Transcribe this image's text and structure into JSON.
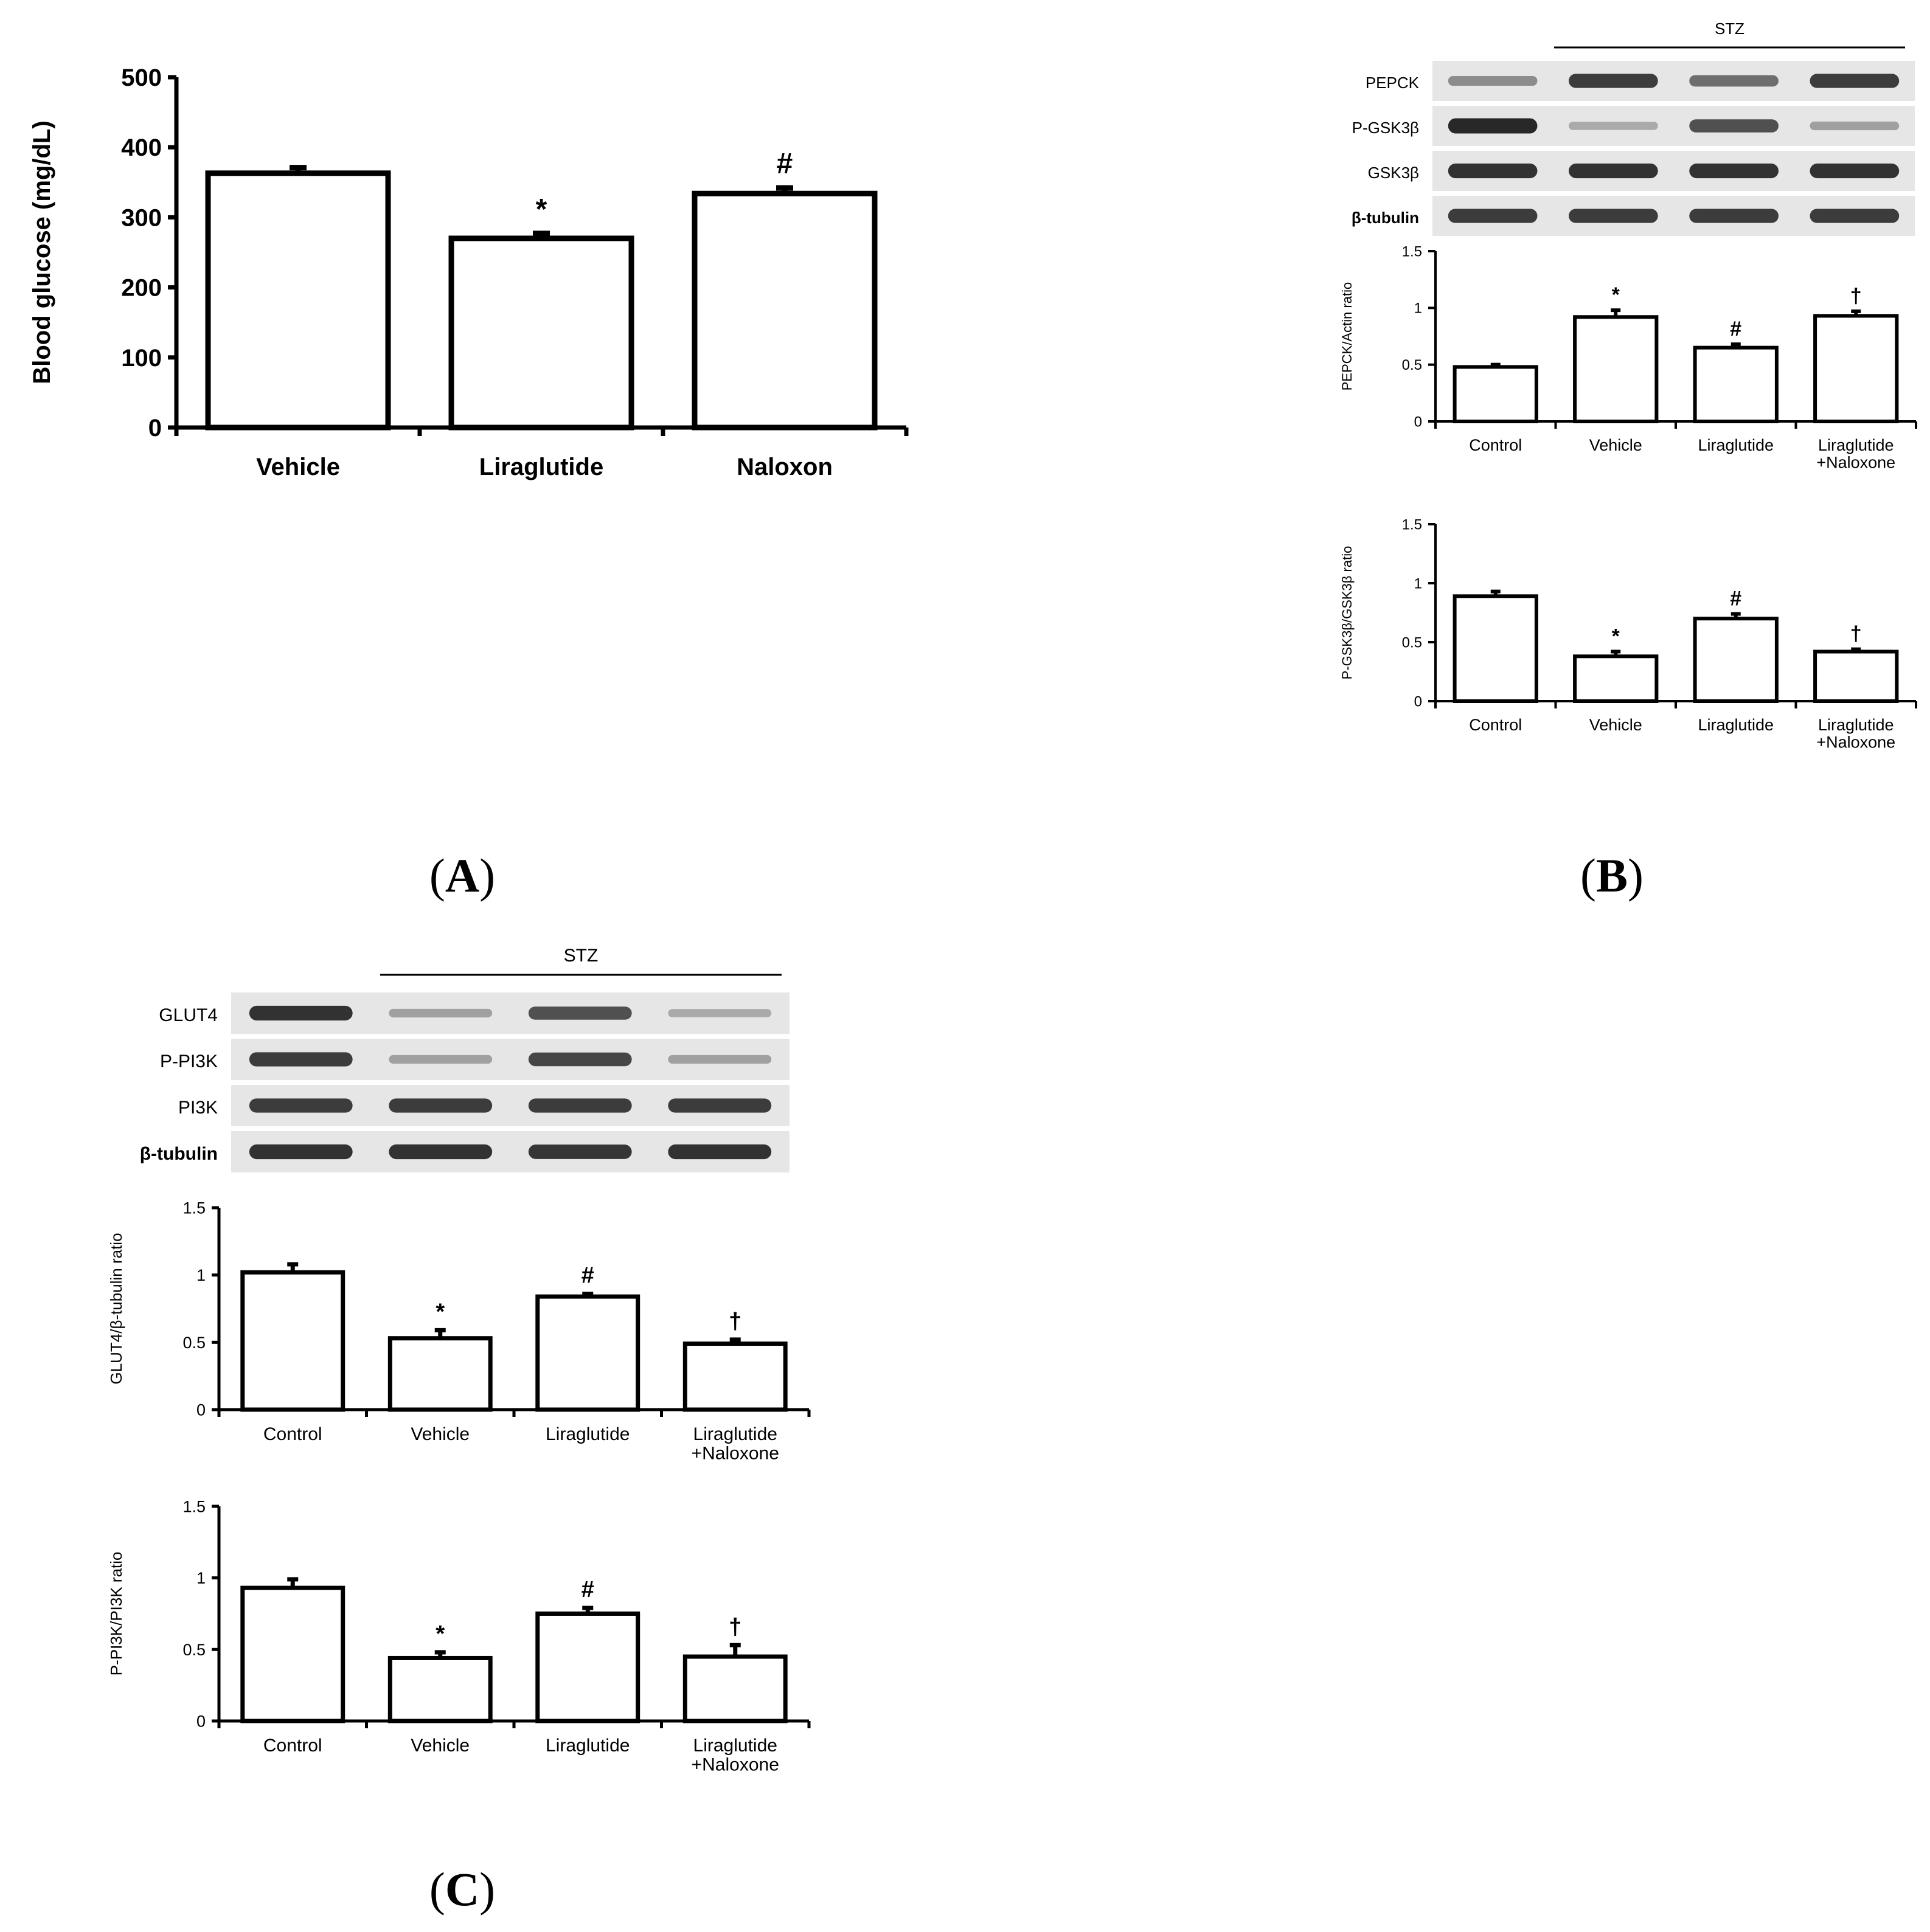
{
  "panels": {
    "A": {
      "label": "A"
    },
    "B": {
      "label": "B"
    },
    "C": {
      "label": "C"
    }
  },
  "chart_data": [
    {
      "id": "A",
      "type": "bar",
      "categories": [
        "Vehicle",
        "Liraglutide",
        "Naloxon"
      ],
      "values": [
        363,
        270,
        334
      ],
      "errors": [
        8,
        7,
        8
      ],
      "annotations": [
        "",
        "*",
        "#"
      ],
      "ylabel": "Blood glucose (mg/dL)",
      "xlabel": "",
      "ylim": [
        0,
        500
      ],
      "yticks": [
        "0",
        "100",
        "200",
        "300",
        "400",
        "500"
      ],
      "grid": false
    },
    {
      "id": "B-PEPCK",
      "type": "bar",
      "categories": [
        "Control",
        "Vehicle",
        "Liraglutide",
        "Liraglutide\n+Naloxone"
      ],
      "values": [
        0.48,
        0.92,
        0.65,
        0.93
      ],
      "errors": [
        0.02,
        0.06,
        0.03,
        0.04
      ],
      "annotations": [
        "",
        "*",
        "#",
        "†"
      ],
      "ylabel": "PEPCK/Actin ratio",
      "ylim": [
        0,
        1.5
      ],
      "yticks": [
        "0",
        "0.5",
        "1",
        "1.5"
      ],
      "grid": false
    },
    {
      "id": "B-GSK3B",
      "type": "bar",
      "categories": [
        "Control",
        "Vehicle",
        "Liraglutide",
        "Liraglutide\n+Naloxone"
      ],
      "values": [
        0.89,
        0.38,
        0.7,
        0.42
      ],
      "errors": [
        0.04,
        0.04,
        0.04,
        0.02
      ],
      "annotations": [
        "",
        "*",
        "#",
        "†"
      ],
      "ylabel": "P-GSK3β/GSK3β ratio",
      "ylim": [
        0,
        1.5
      ],
      "yticks": [
        "0",
        "0.5",
        "1",
        "1.5"
      ],
      "grid": false
    },
    {
      "id": "C-GLUT4",
      "type": "bar",
      "categories": [
        "Control",
        "Vehicle",
        "Liraglutide",
        "Liraglutide\n+Naloxone"
      ],
      "values": [
        1.02,
        0.53,
        0.84,
        0.49
      ],
      "errors": [
        0.06,
        0.06,
        0.02,
        0.03
      ],
      "annotations": [
        "",
        "*",
        "#",
        "†"
      ],
      "ylabel": "GLUT4/β-tubulin ratio",
      "ylim": [
        0,
        1.5
      ],
      "yticks": [
        "0",
        "0.5",
        "1",
        "1.5"
      ],
      "grid": false
    },
    {
      "id": "C-PI3K",
      "type": "bar",
      "categories": [
        "Control",
        "Vehicle",
        "Liraglutide",
        "Liraglutide\n+Naloxone"
      ],
      "values": [
        0.93,
        0.44,
        0.75,
        0.45
      ],
      "errors": [
        0.06,
        0.04,
        0.04,
        0.08
      ],
      "annotations": [
        "",
        "*",
        "#",
        "†"
      ],
      "ylabel": "P-PI3K/PI3K ratio",
      "ylim": [
        0,
        1.5
      ],
      "yticks": [
        "0",
        "0.5",
        "1",
        "1.5"
      ],
      "grid": false
    }
  ],
  "blots": {
    "B": {
      "group_label": "STZ",
      "rows": [
        {
          "label": "PEPCK",
          "intensities": [
            0.45,
            0.85,
            0.6,
            0.85
          ]
        },
        {
          "label": "P-GSK3β",
          "intensities": [
            0.95,
            0.3,
            0.75,
            0.35
          ]
        },
        {
          "label": "GSK3β",
          "intensities": [
            0.9,
            0.9,
            0.9,
            0.9
          ]
        },
        {
          "label": "β-tubulin",
          "intensities": [
            0.85,
            0.85,
            0.85,
            0.85
          ]
        }
      ]
    },
    "C": {
      "group_label": "STZ",
      "rows": [
        {
          "label": "GLUT4",
          "intensities": [
            0.9,
            0.35,
            0.75,
            0.3
          ]
        },
        {
          "label": "P-PI3K",
          "intensities": [
            0.85,
            0.35,
            0.8,
            0.35
          ]
        },
        {
          "label": "PI3K",
          "intensities": [
            0.85,
            0.85,
            0.85,
            0.85
          ]
        },
        {
          "label": "β-tubulin",
          "intensities": [
            0.9,
            0.9,
            0.88,
            0.9
          ]
        }
      ]
    }
  }
}
